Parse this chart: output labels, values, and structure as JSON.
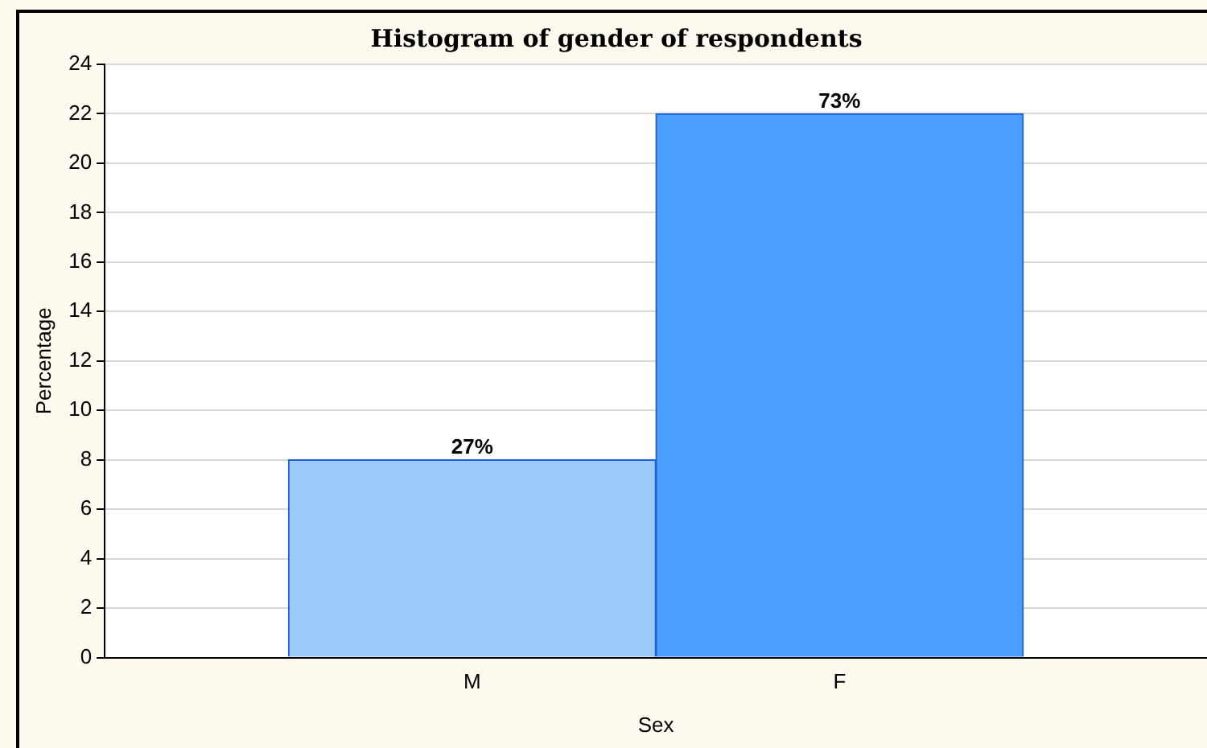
{
  "chart_data": {
    "type": "bar",
    "title": "Histogram of gender of respondents",
    "xlabel": "Sex",
    "ylabel": "Percentage",
    "categories": [
      "M",
      "F"
    ],
    "values": [
      8,
      22
    ],
    "colors": [
      "#9ccafb",
      "#4a9efd"
    ],
    "annotations": [
      {
        "text": "27%",
        "x": "M",
        "y": 8
      },
      {
        "text": "73%",
        "x": "F",
        "y": 22
      }
    ],
    "ylim": [
      0,
      24
    ],
    "yticks": [
      0,
      2,
      4,
      6,
      8,
      10,
      12,
      14,
      16,
      18,
      20,
      22,
      24
    ],
    "grid": "y",
    "legend": false
  }
}
